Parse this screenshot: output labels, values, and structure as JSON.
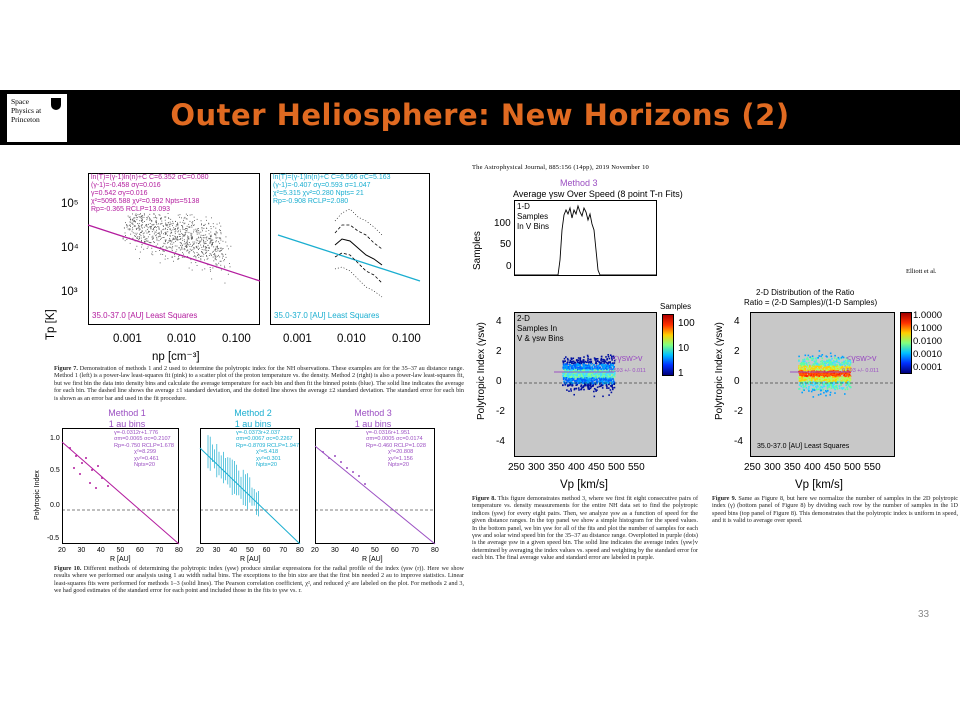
{
  "header": {
    "title": "Outer Heliosphere:  New Horizons  (2)",
    "logo_lines": [
      "Space",
      "Physics at",
      "Princeton"
    ]
  },
  "fig7": {
    "left_legend": [
      "ln(T)=(γ-1)ln(n)+C   C=6.352 σC=0.080",
      "(γ-1)=-0.458   σγ=0.016",
      "γ=0.542 σγ=0.016",
      "χ²=5096.588  χν²=0.992 Npts=5138",
      "Rp=-0.365 RCLP=13.093"
    ],
    "right_legend": [
      "ln(T)=(γ-1)ln(n)+C   C=6.566 σC=5.163",
      "(γ-1)=-0.407 σγ=0.593 σ=1.047",
      "χ²=5.315  χν²=0.280 Npts= 21",
      "Rp=-0.908 RCLP=2.080"
    ],
    "ylabel": "Tp [K]",
    "xlabel": "np [cm⁻³]",
    "yticks": [
      "10⁵",
      "10⁴",
      "10³"
    ],
    "xticks": [
      "0.001",
      "0.010",
      "0.100"
    ],
    "left_note": "35.0-37.0 [AU]   Least Squares",
    "right_note": "35.0-37.0 [AU]   Least Squares",
    "caption_label": "Figure 7.",
    "caption": "Demonstration of methods 1 and 2 used to determine the polytropic index for the NH observations. These examples are for the 35–37 au distance range. Method 1 (left) is a power-law least-squares fit (pink) to a scatter plot of the proton temperature vs. the density. Method 2 (right) is also a power-law least-squares fit, but we first bin the data into density bins and calculate the average temperature for each bin and then fit the binned points (blue). The solid line indicates the average for each bin. The dashed line shows the average ±1 standard deviation, and the dotted line shows the average ±2 standard deviation. The standard error for each bin is shown as an error bar and used in the fit procedure."
  },
  "fig10": {
    "panels": [
      {
        "title": "Method 1",
        "sub": "1 au bins",
        "stats": [
          "γ=-0.0312r+1.776",
          "σm=0.0065  σc=0.2107",
          "Rp=-0.750 RCLP=1.678",
          "χ²=8.299",
          "χν²=0.461",
          "Npts=20"
        ]
      },
      {
        "title": "Method 2",
        "sub": "1 au bins",
        "stats": [
          "γ=-0.0373r+2.037",
          "σm=0.0067  σc=0.2267",
          "Rp=-0.8709 RCLP=1.947",
          "χ²=5.418",
          "χν²=0.301",
          "Npts=20"
        ]
      },
      {
        "title": "Method 3",
        "sub": "1 au bins",
        "stats": [
          "γ=-0.0316r+1.951",
          "σm=0.0005  σc=0.0174",
          "Rp=-0.460 RCLP=1.028",
          "χ²=20.808",
          "χν²=1.156",
          "Npts=20"
        ]
      }
    ],
    "ylabel": "Polytropic Index",
    "xlabel": "R [AU]",
    "yticks": [
      "1.0",
      "0.5",
      "0.0",
      "-0.5"
    ],
    "xticks": [
      "20",
      "30",
      "40",
      "50",
      "60",
      "70",
      "80"
    ],
    "caption_label": "Figure 10.",
    "caption": "Different methods of determining the polytropic index (γsw) produce similar expressions for the radial profile of the index (γsw (r)). Here we show results where we performed our analysis using 1 au width radial bins. The exceptions to the bin size are that the first bin needed 2 au to improve statistics. Linear least-squares fits were performed for methods 1–3 (solid lines). The Pearson correlation coefficient, χ², and reduced χ² are labeled on the plot. For methods 2 and 3, we had good estimates of the standard error for each point and included those in the fits to γsw vs. r."
  },
  "fig8": {
    "journal": "The Astrophysical Journal, 885:156 (14pp), 2019 November 10",
    "method_label": "Method 3",
    "title": "Average γsw Over Speed (8 point T-n Fits)",
    "top_label": [
      "1-D",
      "Samples",
      "In V Bins"
    ],
    "top_ylabel": "Samples",
    "top_yticks": [
      "100",
      "50",
      "0"
    ],
    "bottom_label": [
      "2-D",
      "Samples In",
      "V & γsw Bins"
    ],
    "bottom_ylabel": "Polytropic Index (γsw)",
    "yticks": [
      "4",
      "2",
      "0",
      "-2",
      "-4"
    ],
    "xticks": [
      "250",
      "300",
      "350",
      "400",
      "450",
      "500",
      "550"
    ],
    "xlabel": "Vp [km/s]",
    "colorbar_label": "Samples",
    "colorbar_ticks": [
      "100",
      "10",
      "1"
    ],
    "annotation": "<γsw>v",
    "annotation_value": "0.593 +/- 0.011",
    "caption_label": "Figure 8.",
    "caption": "This figure demonstrates method 3, where we first fit eight consecutive pairs of temperature vs. density measurements for the entire NH data set to find the polytropic indices (γsw) for every eight pairs. Then, we analyze γsw as a function of speed for the given distance ranges. In the top panel we show a simple histogram for the speed values. In the bottom panel, we bin γsw for all of the fits and plot the number of samples for each γsw and solar wind speed bin for the 35–37 au distance range. Overplotted in purple (dots) is the average γsw in a given speed bin. The solid line indicates the average index ⟨γsw⟩v determined by averaging the index values vs. speed and weighting by the standard error for each bin. The final average value and standard error are labeled in purple."
  },
  "fig9": {
    "author": "Elliott et al.",
    "title1": "2-D Distribution of the Ratio",
    "title2": "Ratio = (2-D Samples)/(1-D Samples)",
    "ylabel": "Polytropic Index (γsw)",
    "xlabel": "Vp [km/s]",
    "yticks": [
      "4",
      "2",
      "0",
      "-2",
      "-4"
    ],
    "xticks": [
      "250",
      "300",
      "350",
      "400",
      "450",
      "500",
      "550"
    ],
    "colorbar_ticks": [
      "1.0000",
      "0.1000",
      "0.0100",
      "0.0010",
      "0.0001"
    ],
    "note": "35.0-37.0 [AU]  Least Squares",
    "annotation": "<γsw>v",
    "annotation_value": "0.593 +/- 0.011",
    "caption_label": "Figure 9.",
    "caption": "Same as Figure 8, but here we normalize the number of samples in the 2D polytropic index (γ) (bottom panel of Figure 8) by dividing each row by the number of samples in the 1D speed bins (top panel of Figure 8). This demonstrates that the polytropic index is uniform in speed, and it is valid to average over speed."
  },
  "page_number": "33",
  "colors": {
    "title": "#e06a21",
    "magenta": "#b31c9e",
    "cyan": "#1aaed0",
    "purple": "#9b4fc2",
    "panel_gray": "#c8c8c8"
  }
}
